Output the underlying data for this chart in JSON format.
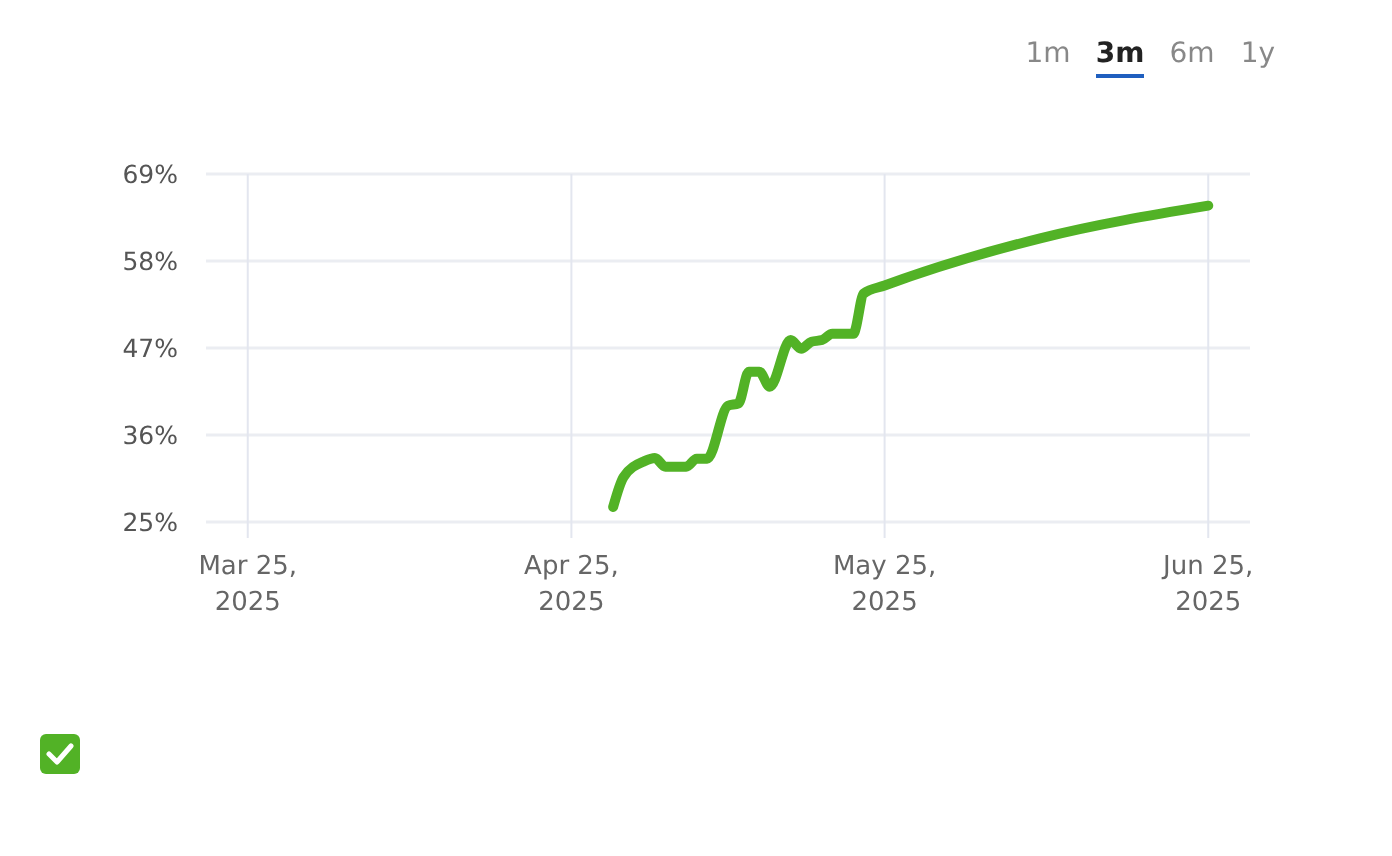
{
  "chart_data": {
    "type": "line",
    "x": [
      "2025-04-29",
      "2025-04-30",
      "2025-05-02",
      "2025-05-03",
      "2025-05-04",
      "2025-05-06",
      "2025-05-07",
      "2025-05-08",
      "2025-05-10",
      "2025-05-11",
      "2025-05-12",
      "2025-05-13",
      "2025-05-14",
      "2025-05-16",
      "2025-05-17",
      "2025-05-18",
      "2025-05-19",
      "2025-05-20",
      "2025-05-22",
      "2025-05-23",
      "2025-05-25",
      "2025-06-09",
      "2025-06-25"
    ],
    "series": [
      {
        "color": "#52b226",
        "values": [
          26.9,
          30.7,
          32.7,
          33.1,
          32.0,
          32.0,
          33.0,
          33.0,
          39.7,
          40.0,
          44.0,
          44.0,
          42.1,
          48.0,
          46.9,
          47.8,
          48.0,
          48.8,
          48.8,
          53.9,
          54.9,
          60.9,
          65.0
        ]
      }
    ],
    "xlim": [
      "2025-03-21",
      "2025-06-29"
    ],
    "xticks": [
      {
        "value": "2025-03-25",
        "label": "Mar 25,\n2025"
      },
      {
        "value": "2025-04-25",
        "label": "Apr 25,\n2025"
      },
      {
        "value": "2025-05-25",
        "label": "May 25,\n2025"
      },
      {
        "value": "2025-06-25",
        "label": "Jun 25,\n2025"
      }
    ],
    "ylim": [
      25,
      69
    ],
    "yticks": [
      {
        "value": 25,
        "label": "25%"
      },
      {
        "value": 36,
        "label": "36%"
      },
      {
        "value": 47,
        "label": "47%"
      },
      {
        "value": 58,
        "label": "58%"
      },
      {
        "value": 69,
        "label": "69%"
      }
    ],
    "grid": true,
    "marker": "none",
    "line_style": "solid",
    "annotations": [
      "1m",
      "3m",
      "6m",
      "1y"
    ]
  }
}
